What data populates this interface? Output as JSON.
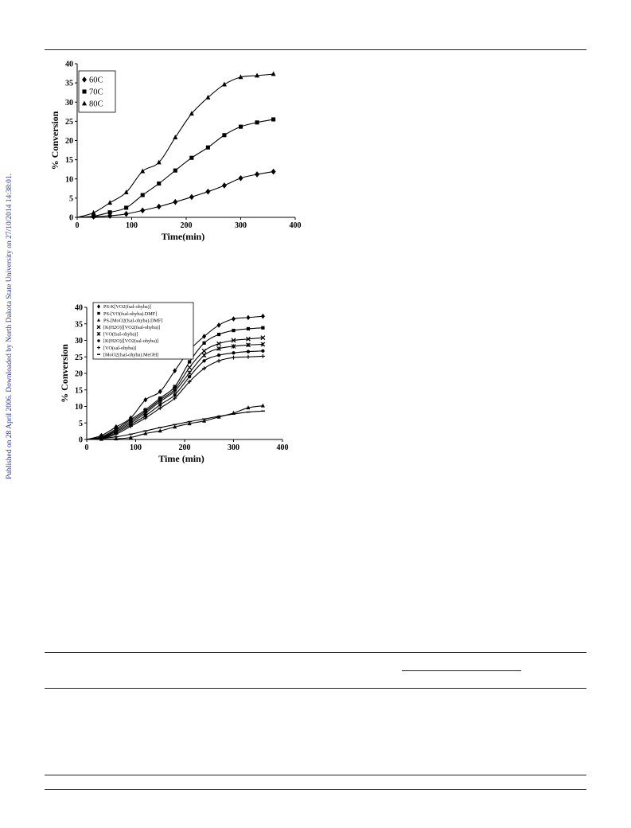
{
  "side_note": "Published on 28 April 2006. Downloaded by North Dakota State University on 27/10/2014 14:38:01.",
  "chart_data": [
    {
      "type": "line",
      "title": "",
      "xlabel": "Time(min)",
      "ylabel": "% Conversion",
      "xlim": [
        0,
        400
      ],
      "ylim": [
        0,
        40
      ],
      "xticks": [
        0,
        100,
        200,
        300,
        400
      ],
      "yticks": [
        0,
        5,
        10,
        15,
        20,
        25,
        30,
        35,
        40
      ],
      "grid": false,
      "legend_position": "top-left",
      "series": [
        {
          "name": "60C",
          "marker": "diamond",
          "x": [
            30,
            60,
            90,
            120,
            150,
            180,
            210,
            240,
            270,
            300,
            330,
            360
          ],
          "y": [
            0.2,
            0.4,
            0.9,
            1.8,
            2.8,
            4.0,
            5.3,
            6.7,
            8.3,
            10.2,
            11.2,
            11.9
          ]
        },
        {
          "name": "70C",
          "marker": "square",
          "x": [
            30,
            60,
            90,
            120,
            150,
            180,
            210,
            240,
            270,
            300,
            330,
            360
          ],
          "y": [
            0.3,
            1.3,
            2.5,
            5.8,
            8.8,
            12.2,
            15.5,
            18.2,
            21.4,
            23.6,
            24.7,
            25.5
          ]
        },
        {
          "name": "80C",
          "marker": "triangle",
          "x": [
            30,
            60,
            90,
            120,
            150,
            180,
            210,
            240,
            270,
            300,
            330,
            360
          ],
          "y": [
            1.2,
            3.8,
            6.5,
            12.0,
            14.3,
            20.8,
            27.0,
            31.2,
            34.6,
            36.5,
            36.9,
            37.3
          ]
        }
      ]
    },
    {
      "type": "line",
      "title": "",
      "xlabel": "Time (min)",
      "ylabel": "% Conversion",
      "xlim": [
        0,
        400
      ],
      "ylim": [
        0,
        40
      ],
      "xticks": [
        0,
        100,
        200,
        300,
        400
      ],
      "yticks": [
        0,
        5,
        10,
        15,
        20,
        25,
        30,
        35,
        40
      ],
      "grid": false,
      "legend_position": "top-left",
      "series": [
        {
          "name": "PS-K[VO2(fsal-ohyba)]",
          "marker": "diamond",
          "x": [
            30,
            60,
            90,
            120,
            150,
            180,
            210,
            240,
            270,
            300,
            330,
            360
          ],
          "y": [
            1.2,
            3.8,
            6.5,
            12.0,
            14.5,
            20.8,
            27.0,
            31.2,
            34.6,
            36.5,
            36.9,
            37.3
          ]
        },
        {
          "name": "PS-[VO(fsal-ohyba).DMF]",
          "marker": "square",
          "x": [
            30,
            60,
            90,
            120,
            150,
            180,
            210,
            240,
            270,
            300,
            330,
            360
          ],
          "y": [
            0.8,
            3.2,
            6.0,
            9.0,
            12.5,
            16.0,
            23.5,
            29.2,
            31.8,
            33.0,
            33.5,
            33.8
          ]
        },
        {
          "name": "PS-[MoO2(fsal-ohyba).DMF]",
          "marker": "triangle",
          "x": [
            30,
            60,
            90,
            120,
            150,
            180,
            210,
            240,
            270,
            300,
            330,
            360
          ],
          "y": [
            0.1,
            0.2,
            0.6,
            1.8,
            2.6,
            3.8,
            4.8,
            5.6,
            6.8,
            8.0,
            9.6,
            10.2
          ]
        },
        {
          "name": "[K(H2O)][VO2(fsal-ohyba)]",
          "marker": "x",
          "x": [
            30,
            60,
            90,
            120,
            150,
            180,
            210,
            240,
            270,
            300,
            330,
            360
          ],
          "y": [
            0.6,
            2.8,
            5.5,
            8.5,
            12.0,
            15.2,
            21.8,
            26.8,
            29.0,
            30.0,
            30.4,
            30.8
          ]
        },
        {
          "name": "[VO(fsal-ohyba)]",
          "marker": "star",
          "x": [
            30,
            60,
            90,
            120,
            150,
            180,
            210,
            240,
            270,
            300,
            330,
            360
          ],
          "y": [
            0.5,
            2.4,
            5.0,
            8.0,
            11.5,
            14.6,
            20.2,
            25.5,
            27.5,
            28.2,
            28.6,
            28.8
          ]
        },
        {
          "name": "[K(H2O)][VO2(sal-ohyba)]",
          "marker": "circle",
          "x": [
            30,
            60,
            90,
            120,
            150,
            180,
            210,
            240,
            270,
            300,
            330,
            360
          ],
          "y": [
            0.4,
            2.0,
            4.5,
            7.2,
            10.5,
            13.5,
            19.0,
            23.8,
            25.5,
            26.2,
            26.6,
            26.8
          ]
        },
        {
          "name": "[VO(sal-ohyba)]",
          "marker": "plus",
          "x": [
            30,
            60,
            90,
            120,
            150,
            180,
            210,
            240,
            270,
            300,
            330,
            360
          ],
          "y": [
            0.3,
            1.6,
            4.0,
            6.5,
            9.5,
            12.5,
            17.5,
            21.5,
            23.8,
            24.8,
            25.0,
            25.2
          ]
        },
        {
          "name": "[MoO2(fsal-ohyba).MeOH]",
          "marker": "dash",
          "x": [
            30,
            60,
            90,
            120,
            150,
            180,
            210,
            240,
            270,
            300,
            330,
            360
          ],
          "y": [
            0.3,
            0.8,
            1.6,
            2.6,
            3.6,
            4.5,
            5.4,
            6.2,
            7.0,
            7.7,
            8.3,
            8.6
          ]
        }
      ]
    }
  ]
}
